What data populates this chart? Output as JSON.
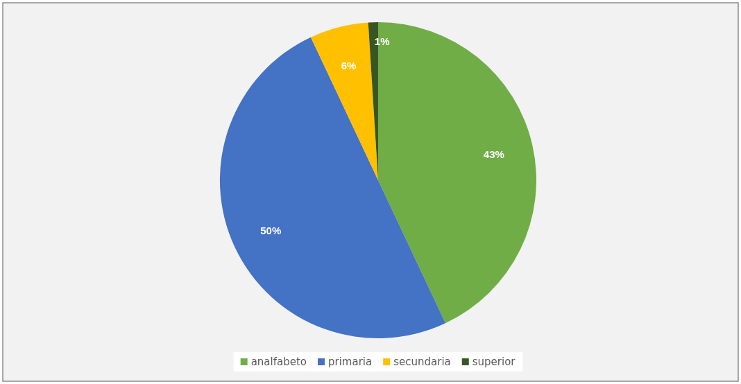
{
  "chart_data": {
    "type": "pie",
    "categories": [
      "analfabeto",
      "primaria",
      "secundaria",
      "superior"
    ],
    "values": [
      43,
      50,
      6,
      1
    ],
    "colors": [
      "#70ad47",
      "#4472c4",
      "#ffc000",
      "#375623"
    ],
    "value_labels": [
      "43%",
      "50%",
      "6%",
      "1%"
    ],
    "legend": "bottom"
  }
}
